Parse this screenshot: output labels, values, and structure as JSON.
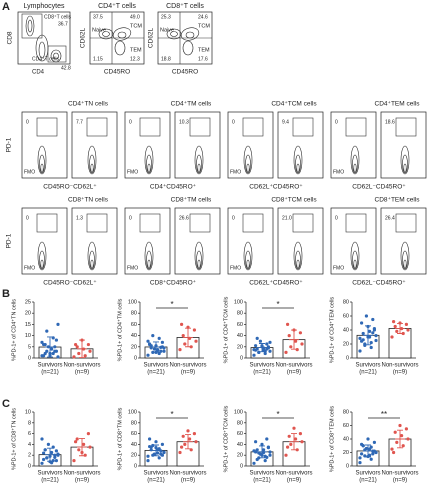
{
  "panel_labels": [
    "A",
    "B",
    "C"
  ],
  "flow": {
    "lymphocytes": {
      "title": "Lymphocytes",
      "xlabel": "CD4",
      "ylabel": "CD8",
      "upper": "CD8⁺T cells",
      "upper_value": "36.7",
      "lower": "CD4⁺T cells",
      "lower_value": "42.8"
    },
    "subsets": [
      {
        "title": "CD4⁺T cells",
        "xlabel": "CD45RO",
        "ylabel": "CD62L",
        "names": [
          "Naive",
          "TCM",
          "TEM"
        ],
        "quadrants": [
          "37.5",
          "49.0",
          "1.15",
          "12.3"
        ]
      },
      {
        "title": "CD8⁺T cells",
        "xlabel": "CD45RO",
        "ylabel": "CD62L",
        "names": [
          "Naive",
          "TCM",
          "TEM"
        ],
        "quadrants": [
          "25.3",
          "24.6",
          "18.8",
          "17.6"
        ]
      }
    ],
    "gate_rows": [
      {
        "titles": [
          "CD4⁺TN cells",
          "CD4⁺TM cells",
          "CD4⁺TCM cells",
          "CD4⁺TEM cells"
        ],
        "xlabels": [
          "CD45RO⁻CD62L⁺",
          "CD4⁺CD45RO⁺",
          "CD62L⁺CD45RO⁺",
          "CD62L⁻CD45RO⁺"
        ],
        "ylabel": "PD-1",
        "fmo": "FMO",
        "gates": [
          "0",
          "7.7",
          "0",
          "10.3",
          "0",
          "9.4",
          "0",
          "18.6"
        ]
      },
      {
        "titles": [
          "CD8⁺TN cells",
          "CD8⁺TM cells",
          "CD8⁺TCM cells",
          "CD8⁺TEM cells"
        ],
        "xlabels": [
          "CD45RO⁻CD62L⁺",
          "CD8⁺CD45RO⁺",
          "CD62L⁺CD45RO⁺",
          "CD62L⁻CD45RO⁺"
        ],
        "ylabel": "PD-1",
        "fmo": "FMO",
        "gates": [
          "0",
          "1.3",
          "0",
          "26.6",
          "0",
          "21.0",
          "0",
          "26.4"
        ]
      }
    ]
  },
  "chart_data": [
    {
      "type": "bar",
      "ylabel": "%PD-1+ of CD4⁺TN cells",
      "categories": [
        "Survivors",
        "Non-survivors"
      ],
      "n_labels": [
        "(n=21)",
        "(n=9)"
      ],
      "colors": [
        "#2f68b5",
        "#e0554f"
      ],
      "values": [
        4.9,
        4.1
      ],
      "errors": [
        4.5,
        3.9
      ],
      "ylim": [
        0,
        25
      ],
      "yticks": [
        0,
        5,
        10,
        15,
        20,
        25
      ],
      "points": [
        [
          1,
          2,
          3,
          0.5,
          4,
          6,
          8,
          2,
          1,
          3,
          5,
          7,
          9,
          12,
          15,
          4,
          2,
          3,
          1,
          6,
          5
        ],
        [
          0.5,
          1,
          2,
          3,
          4,
          5,
          6,
          8,
          6
        ]
      ]
    },
    {
      "type": "bar",
      "ylabel": "%PD-1+ of CD4⁺TM cells",
      "categories": [
        "Survivors",
        "Non-survivors"
      ],
      "n_labels": [
        "(n=21)",
        "(n=9)"
      ],
      "colors": [
        "#2f68b5",
        "#e0554f"
      ],
      "values": [
        19.7,
        36.7
      ],
      "errors": [
        9.0,
        16.6
      ],
      "ylim": [
        0,
        100
      ],
      "yticks": [
        0,
        20,
        40,
        60,
        80,
        100
      ],
      "significance": "*",
      "points": [
        [
          5,
          8,
          10,
          12,
          15,
          18,
          20,
          22,
          25,
          12,
          16,
          30,
          35,
          40,
          18,
          14,
          22,
          28,
          10,
          24,
          19
        ],
        [
          15,
          20,
          25,
          30,
          35,
          40,
          50,
          55,
          60
        ]
      ]
    },
    {
      "type": "bar",
      "ylabel": "%PD-1+ of CD4⁺TCM cells",
      "categories": [
        "Survivors",
        "Non-survivors"
      ],
      "n_labels": [
        "(n=21)",
        "(n=9)"
      ],
      "colors": [
        "#2f68b5",
        "#e0554f"
      ],
      "values": [
        18.6,
        32.8
      ],
      "errors": [
        7.3,
        17.1
      ],
      "ylim": [
        0,
        100
      ],
      "yticks": [
        0,
        20,
        40,
        60,
        80,
        100
      ],
      "significance": "*",
      "points": [
        [
          5,
          8,
          10,
          12,
          14,
          16,
          18,
          20,
          22,
          25,
          30,
          15,
          12,
          10,
          28,
          18,
          35,
          20,
          22,
          14,
          16
        ],
        [
          10,
          15,
          20,
          25,
          30,
          40,
          45,
          50,
          60
        ]
      ]
    },
    {
      "type": "bar",
      "ylabel": "%PD-1+ of CD4⁺TEM cells",
      "categories": [
        "Survivors",
        "Non-survivors"
      ],
      "n_labels": [
        "(n=21)",
        "(n=9)"
      ],
      "colors": [
        "#2f68b5",
        "#e0554f"
      ],
      "values": [
        32.4,
        42.2
      ],
      "errors": [
        13.5,
        7.2
      ],
      "ylim": [
        0,
        80
      ],
      "yticks": [
        0,
        20,
        40,
        60,
        80
      ],
      "points": [
        [
          10,
          15,
          20,
          25,
          30,
          35,
          40,
          45,
          50,
          55,
          60,
          28,
          22,
          18,
          32,
          38,
          26,
          42,
          30,
          24,
          36
        ],
        [
          30,
          35,
          38,
          40,
          42,
          45,
          48,
          50,
          52
        ]
      ]
    },
    {
      "type": "bar",
      "ylabel": "%PD-1+ of CD8⁺TN cells",
      "categories": [
        "Survivors",
        "Non-survivors"
      ],
      "n_labels": [
        "(n=21)",
        "(n=9)"
      ],
      "colors": [
        "#2f68b5",
        "#e0554f"
      ],
      "values": [
        2.1,
        3.5
      ],
      "errors": [
        1.2,
        1.6
      ],
      "ylim": [
        0,
        10
      ],
      "yticks": [
        0,
        2,
        4,
        6,
        8,
        10
      ],
      "points": [
        [
          0.5,
          1,
          1.5,
          2,
          2.5,
          3,
          1,
          0.8,
          1.2,
          2,
          4,
          5,
          3.5,
          1.5,
          2.2,
          0.6,
          3,
          2.8,
          1.8,
          2.4,
          1.6
        ],
        [
          1,
          2,
          3,
          3.5,
          4,
          5,
          6,
          2.5,
          4.5
        ]
      ]
    },
    {
      "type": "bar",
      "ylabel": "%PD-1+ of CD8⁺TM cells",
      "categories": [
        "Survivors",
        "Non-survivors"
      ],
      "n_labels": [
        "(n=21)",
        "(n=9)"
      ],
      "colors": [
        "#2f68b5",
        "#e0554f"
      ],
      "values": [
        28.9,
        45.0
      ],
      "errors": [
        10.0,
        13.2
      ],
      "ylim": [
        0,
        100
      ],
      "yticks": [
        0,
        20,
        40,
        60,
        80,
        100
      ],
      "significance": "*",
      "points": [
        [
          10,
          15,
          20,
          25,
          30,
          35,
          40,
          45,
          50,
          28,
          22,
          18,
          32,
          38,
          26,
          24,
          30,
          20,
          34,
          36,
          22
        ],
        [
          25,
          30,
          40,
          45,
          50,
          55,
          60,
          65,
          35
        ]
      ]
    },
    {
      "type": "bar",
      "ylabel": "%PD-1+ of CD8⁺TCM cells",
      "categories": [
        "Survivors",
        "Non-survivors"
      ],
      "n_labels": [
        "(n=21)",
        "(n=9)"
      ],
      "colors": [
        "#2f68b5",
        "#e0554f"
      ],
      "values": [
        26.2,
        45.0
      ],
      "errors": [
        11.0,
        15.0
      ],
      "ylim": [
        0,
        100
      ],
      "yticks": [
        0,
        20,
        40,
        60,
        80,
        100
      ],
      "significance": "*",
      "points": [
        [
          5,
          10,
          15,
          20,
          25,
          30,
          35,
          40,
          45,
          50,
          22,
          28,
          18,
          24,
          26,
          30,
          12,
          34,
          20,
          26,
          16
        ],
        [
          20,
          30,
          40,
          45,
          50,
          55,
          60,
          70,
          35
        ]
      ]
    },
    {
      "type": "bar",
      "ylabel": "%PD-1+ of CD8⁺TEM cells",
      "categories": [
        "Survivors",
        "Non-survivors"
      ],
      "n_labels": [
        "(n=21)",
        "(n=9)"
      ],
      "colors": [
        "#2f68b5",
        "#e0554f"
      ],
      "values": [
        22.3,
        40.0
      ],
      "errors": [
        8.8,
        13.0
      ],
      "ylim": [
        0,
        80
      ],
      "yticks": [
        0,
        20,
        40,
        60,
        80
      ],
      "significance": "**",
      "points": [
        [
          5,
          10,
          15,
          20,
          25,
          30,
          35,
          40,
          18,
          22,
          26,
          12,
          28,
          24,
          20,
          16,
          30,
          22,
          14,
          32,
          18
        ],
        [
          25,
          30,
          35,
          40,
          45,
          50,
          55,
          60,
          20
        ]
      ]
    }
  ]
}
